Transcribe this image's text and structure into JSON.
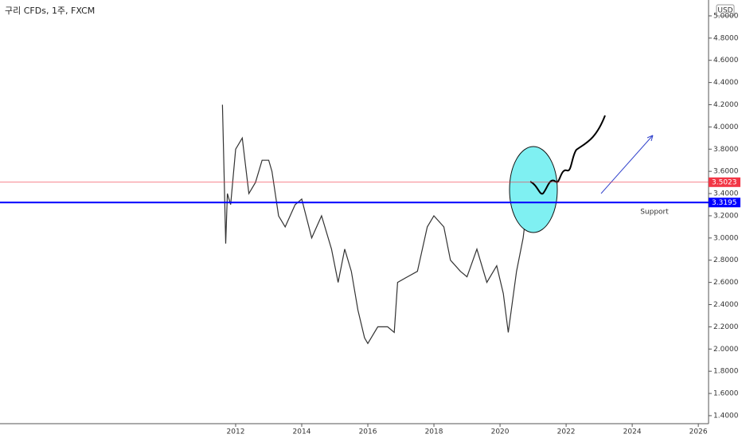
{
  "chart_data": {
    "type": "line",
    "title": "구리 CFDs, 1주, FXCM",
    "currency": "USD",
    "annotation": "Support",
    "color": "#333333",
    "x": [
      2011.6,
      2011.65,
      2011.7,
      2011.75,
      2011.85,
      2012.0,
      2012.2,
      2012.4,
      2012.6,
      2012.8,
      2013.0,
      2013.1,
      2013.3,
      2013.5,
      2013.8,
      2014.0,
      2014.3,
      2014.6,
      2014.9,
      2015.1,
      2015.3,
      2015.5,
      2015.7,
      2015.9,
      2016.0,
      2016.3,
      2016.6,
      2016.8,
      2016.9,
      2017.2,
      2017.5,
      2017.8,
      2018.0,
      2018.3,
      2018.5,
      2018.8,
      2019.0,
      2019.3,
      2019.6,
      2019.9,
      2020.1,
      2020.25,
      2020.5,
      2020.7,
      2020.9
    ],
    "values": [
      4.2,
      3.6,
      2.95,
      3.4,
      3.3,
      3.8,
      3.9,
      3.4,
      3.5,
      3.7,
      3.7,
      3.6,
      3.2,
      3.1,
      3.3,
      3.35,
      3.0,
      3.2,
      2.9,
      2.6,
      2.9,
      2.7,
      2.35,
      2.1,
      2.05,
      2.2,
      2.2,
      2.15,
      2.6,
      2.65,
      2.7,
      3.1,
      3.2,
      3.1,
      2.8,
      2.7,
      2.65,
      2.9,
      2.6,
      2.75,
      2.5,
      2.15,
      2.7,
      3.0,
      3.5
    ],
    "lines": [
      {
        "value": 3.5023,
        "color": "#f23645"
      },
      {
        "value": 3.3195,
        "color": "#0000ff"
      }
    ],
    "xlim": [
      2004.87,
      2026.31
    ],
    "xticks": [
      2012,
      2014,
      2016,
      2018,
      2020,
      2022,
      2024,
      2026
    ],
    "ylim": [
      1.328,
      5.143
    ],
    "yticks": [
      {
        "value": 1.4,
        "label": "1.4000"
      },
      {
        "value": 1.6,
        "label": "1.6000"
      },
      {
        "value": 1.8,
        "label": "1.8000"
      },
      {
        "value": 2.0,
        "label": "2.0000"
      },
      {
        "value": 2.2,
        "label": "2.2000"
      },
      {
        "value": 2.4,
        "label": "2.4000"
      },
      {
        "value": 2.6,
        "label": "2.6000"
      },
      {
        "value": 2.8,
        "label": "2.8000"
      },
      {
        "value": 3.0,
        "label": "3.0000"
      },
      {
        "value": 3.2,
        "label": "3.2000"
      },
      {
        "value": 3.4,
        "label": "3.4000"
      },
      {
        "value": 3.6,
        "label": "3.6000"
      },
      {
        "value": 3.8,
        "label": "3.8000"
      },
      {
        "value": 4.0,
        "label": "4.0000"
      },
      {
        "value": 4.2,
        "label": "4.2000"
      },
      {
        "value": 4.4,
        "label": "4.4000"
      },
      {
        "value": 4.6,
        "label": "4.6000"
      },
      {
        "value": 4.8,
        "label": "4.8000"
      },
      {
        "value": 5.0,
        "label": "5.0000"
      }
    ]
  }
}
